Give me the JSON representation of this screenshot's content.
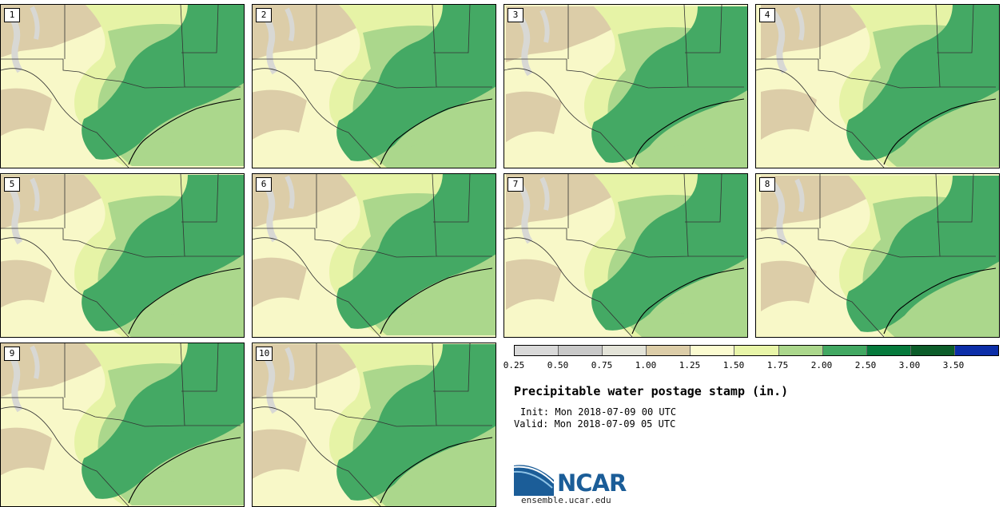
{
  "panels": [
    {
      "label": "1"
    },
    {
      "label": "2"
    },
    {
      "label": "3"
    },
    {
      "label": "4"
    },
    {
      "label": "5"
    },
    {
      "label": "6"
    },
    {
      "label": "7"
    },
    {
      "label": "8"
    },
    {
      "label": "9"
    },
    {
      "label": "10"
    }
  ],
  "legend": {
    "colors": [
      "#d9d9d9",
      "#c8c8c8",
      "#e3e3d8",
      "#dccda8",
      "#fbfbd0",
      "#e8f5a8",
      "#abd78c",
      "#42a862",
      "#067a3c",
      "#0c5d2a",
      "#0c2ea8"
    ],
    "ticks": [
      "0.25",
      "0.50",
      "0.75",
      "1.00",
      "1.25",
      "1.50",
      "1.75",
      "2.00",
      "2.50",
      "3.00",
      "3.50"
    ]
  },
  "title": "Precipitable water postage stamp (in.)",
  "init": "Init: Mon 2018-07-09 00 UTC",
  "valid": "Valid: Mon 2018-07-09 05 UTC",
  "logo": {
    "text": "NCAR",
    "icon": "ncar-logo-icon"
  },
  "url": "ensemble.ucar.edu"
}
